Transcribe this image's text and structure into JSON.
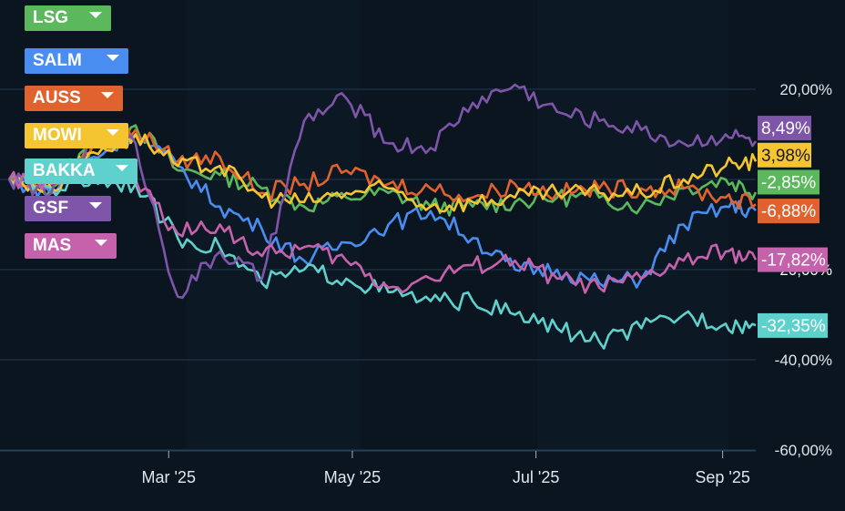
{
  "chart_data": {
    "type": "line",
    "x": [
      "2025-01-07",
      "2025-01-21",
      "2025-02-04",
      "2025-02-18",
      "2025-03-04",
      "2025-03-18",
      "2025-04-01",
      "2025-04-15",
      "2025-04-29",
      "2025-05-13",
      "2025-05-27",
      "2025-06-10",
      "2025-06-24",
      "2025-07-08",
      "2025-07-22",
      "2025-08-05",
      "2025-08-19",
      "2025-09-02",
      "2025-09-12"
    ],
    "x_ticks": [
      "Mar '25",
      "May '25",
      "Jul '25",
      "Sep '25"
    ],
    "y_ticks": [
      "20,00%",
      "-40,00%",
      "-60,00%"
    ],
    "ylim": [
      -60,
      30
    ],
    "grid": true,
    "series": [
      {
        "name": "LSG",
        "color": "#5cb85c",
        "end_label": "-2,85%",
        "values": [
          0,
          -2,
          8,
          12,
          2,
          1,
          -2,
          -6,
          -4,
          -3,
          -6,
          -6,
          -5,
          -4,
          -4,
          -6,
          -2,
          0,
          -2.85
        ]
      },
      {
        "name": "SALM",
        "color": "#4a8df0",
        "end_label": "-6,88%",
        "values": [
          0,
          -3,
          5,
          10,
          3,
          -6,
          -11,
          -18,
          -14,
          -10,
          -7,
          -13,
          -20,
          -20,
          -23,
          -22,
          -10,
          -6,
          -6.88
        ]
      },
      {
        "name": "AUSS",
        "color": "#e0622f",
        "end_label": "",
        "values": [
          0,
          -1,
          8,
          11,
          4,
          5,
          -3,
          -1,
          2,
          -1,
          -2,
          -4,
          -1,
          -3,
          -2,
          -2,
          -2,
          -4,
          -5.5
        ]
      },
      {
        "name": "MOWI",
        "color": "#f5c531",
        "end_label": "3,98%",
        "values": [
          0,
          -2,
          6,
          10,
          3,
          3,
          -4,
          -5,
          -3,
          -2,
          -6,
          -5,
          -4,
          -3,
          -3,
          -3,
          0,
          3,
          3.98
        ]
      },
      {
        "name": "BAKKA",
        "color": "#5fd1cc",
        "end_label": "-32,35%",
        "values": [
          0,
          -2,
          0,
          -1,
          -13,
          -15,
          -23,
          -20,
          -22,
          -25,
          -27,
          -27,
          -30,
          -33,
          -36,
          -33,
          -30,
          -32,
          -32.35
        ]
      },
      {
        "name": "GSF",
        "color": "#7e55a8",
        "end_label": "8,49%",
        "values": [
          0,
          -3,
          9,
          8,
          -26,
          -16,
          -22,
          13,
          18,
          8,
          7,
          17,
          21,
          15,
          13,
          11,
          8,
          10,
          8.49
        ]
      },
      {
        "name": "MAS",
        "color": "#c562ab",
        "end_label": "-17,82%",
        "values": [
          0,
          -1,
          4,
          0,
          -12,
          -10,
          -17,
          -15,
          -18,
          -24,
          -22,
          -19,
          -18,
          -22,
          -24,
          -22,
          -18,
          -16,
          -17.82
        ]
      }
    ],
    "extra_labels": [
      {
        "text": "-20,00%",
        "color": "#c562ab"
      }
    ]
  },
  "legend": [
    {
      "name": "LSG",
      "color": "#5cb85c"
    },
    {
      "name": "SALM",
      "color": "#4a8df0"
    },
    {
      "name": "AUSS",
      "color": "#e0622f"
    },
    {
      "name": "MOWI",
      "color": "#f5c531"
    },
    {
      "name": "BAKKA",
      "color": "#5fd1cc"
    },
    {
      "name": "GSF",
      "color": "#7e55a8"
    },
    {
      "name": "MAS",
      "color": "#c562ab"
    }
  ]
}
